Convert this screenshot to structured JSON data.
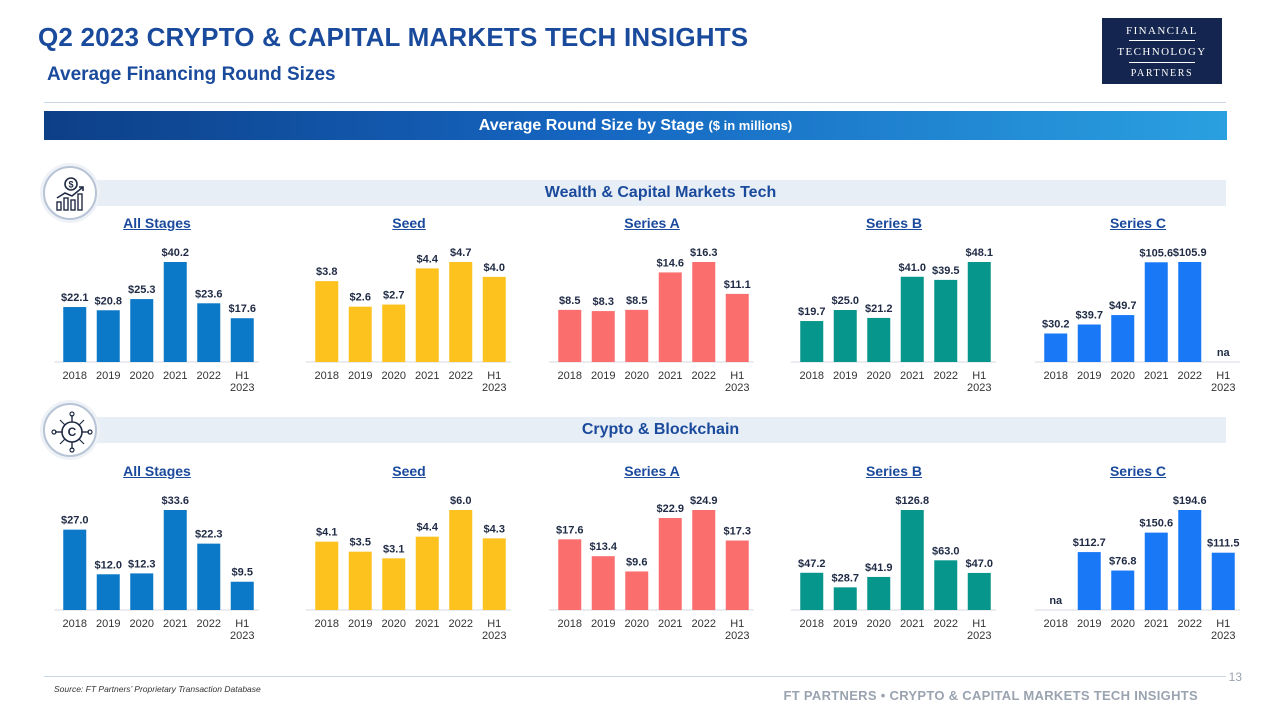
{
  "header": {
    "title": "Q2 2023 CRYPTO & CAPITAL MARKETS TECH INSIGHTS",
    "subtitle": "Average Financing Round Sizes"
  },
  "logo": {
    "line1": "FINANCIAL",
    "line2": "TECHNOLOGY",
    "line3": "PARTNERS"
  },
  "banner": {
    "title": "Average Round Size by Stage",
    "unit": "($ in millions)"
  },
  "sections": [
    {
      "title": "Wealth & Capital Markets Tech",
      "icon": "financial-growth-icon"
    },
    {
      "title": "Crypto & Blockchain",
      "icon": "crypto-coin-icon"
    }
  ],
  "colors": {
    "all_stages": "#0b78c8",
    "seed": "#fdc21e",
    "series_a": "#fb6e6e",
    "series_b": "#06968c",
    "series_c": "#1978f5",
    "title_blue": "#1a4a9c"
  },
  "chart_data": [
    {
      "section": "Wealth & Capital Markets Tech",
      "type": "bar",
      "title": "All Stages",
      "color_key": "all_stages",
      "categories": [
        "2018",
        "2019",
        "2020",
        "2021",
        "2022",
        "H1 2023"
      ],
      "values": [
        22.1,
        20.8,
        25.3,
        40.2,
        23.6,
        17.6
      ],
      "labels": [
        "$22.1",
        "$20.8",
        "$25.3",
        "$40.2",
        "$23.6",
        "$17.6"
      ]
    },
    {
      "section": "Wealth & Capital Markets Tech",
      "type": "bar",
      "title": "Seed",
      "color_key": "seed",
      "categories": [
        "2018",
        "2019",
        "2020",
        "2021",
        "2022",
        "H1 2023"
      ],
      "values": [
        3.8,
        2.6,
        2.7,
        4.4,
        4.7,
        4.0
      ],
      "labels": [
        "$3.8",
        "$2.6",
        "$2.7",
        "$4.4",
        "$4.7",
        "$4.0"
      ]
    },
    {
      "section": "Wealth & Capital Markets Tech",
      "type": "bar",
      "title": "Series A",
      "color_key": "series_a",
      "categories": [
        "2018",
        "2019",
        "2020",
        "2021",
        "2022",
        "H1 2023"
      ],
      "values": [
        8.5,
        8.3,
        8.5,
        14.6,
        16.3,
        11.1
      ],
      "labels": [
        "$8.5",
        "$8.3",
        "$8.5",
        "$14.6",
        "$16.3",
        "$11.1"
      ]
    },
    {
      "section": "Wealth & Capital Markets Tech",
      "type": "bar",
      "title": "Series B",
      "color_key": "series_b",
      "categories": [
        "2018",
        "2019",
        "2020",
        "2021",
        "2022",
        "H1 2023"
      ],
      "values": [
        19.7,
        25.0,
        21.2,
        41.0,
        39.5,
        48.1
      ],
      "labels": [
        "$19.7",
        "$25.0",
        "$21.2",
        "$41.0",
        "$39.5",
        "$48.1"
      ]
    },
    {
      "section": "Wealth & Capital Markets Tech",
      "type": "bar",
      "title": "Series C",
      "color_key": "series_c",
      "categories": [
        "2018",
        "2019",
        "2020",
        "2021",
        "2022",
        "H1 2023"
      ],
      "values": [
        30.2,
        39.7,
        49.7,
        105.6,
        105.9,
        null
      ],
      "labels": [
        "$30.2",
        "$39.7",
        "$49.7",
        "$105.6",
        "$105.9",
        "na"
      ]
    },
    {
      "section": "Crypto & Blockchain",
      "type": "bar",
      "title": "All Stages",
      "color_key": "all_stages",
      "categories": [
        "2018",
        "2019",
        "2020",
        "2021",
        "2022",
        "H1 2023"
      ],
      "values": [
        27.0,
        12.0,
        12.3,
        33.6,
        22.3,
        9.5
      ],
      "labels": [
        "$27.0",
        "$12.0",
        "$12.3",
        "$33.6",
        "$22.3",
        "$9.5"
      ]
    },
    {
      "section": "Crypto & Blockchain",
      "type": "bar",
      "title": "Seed",
      "color_key": "seed",
      "categories": [
        "2018",
        "2019",
        "2020",
        "2021",
        "2022",
        "H1 2023"
      ],
      "values": [
        4.1,
        3.5,
        3.1,
        4.4,
        6.0,
        4.3
      ],
      "labels": [
        "$4.1",
        "$3.5",
        "$3.1",
        "$4.4",
        "$6.0",
        "$4.3"
      ]
    },
    {
      "section": "Crypto & Blockchain",
      "type": "bar",
      "title": "Series A",
      "color_key": "series_a",
      "categories": [
        "2018",
        "2019",
        "2020",
        "2021",
        "2022",
        "H1 2023"
      ],
      "values": [
        17.6,
        13.4,
        9.6,
        22.9,
        24.9,
        17.3
      ],
      "labels": [
        "$17.6",
        "$13.4",
        "$9.6",
        "$22.9",
        "$24.9",
        "$17.3"
      ]
    },
    {
      "section": "Crypto & Blockchain",
      "type": "bar",
      "title": "Series B",
      "color_key": "series_b",
      "categories": [
        "2018",
        "2019",
        "2020",
        "2021",
        "2022",
        "H1 2023"
      ],
      "values": [
        47.2,
        28.7,
        41.9,
        126.8,
        63.0,
        47.0
      ],
      "labels": [
        "$47.2",
        "$28.7",
        "$41.9",
        "$126.8",
        "$63.0",
        "$47.0"
      ]
    },
    {
      "section": "Crypto & Blockchain",
      "type": "bar",
      "title": "Series C",
      "color_key": "series_c",
      "categories": [
        "2018",
        "2019",
        "2020",
        "2021",
        "2022",
        "H1 2023"
      ],
      "values": [
        null,
        112.7,
        76.8,
        150.6,
        194.6,
        111.5
      ],
      "labels": [
        "na",
        "$112.7",
        "$76.8",
        "$150.6",
        "$194.6",
        "$111.5"
      ]
    }
  ],
  "footer": {
    "source": "Source: FT Partners’ Proprietary Transaction Database",
    "tagline": "FT PARTNERS • CRYPTO & CAPITAL MARKETS TECH INSIGHTS",
    "page_number": "13"
  }
}
